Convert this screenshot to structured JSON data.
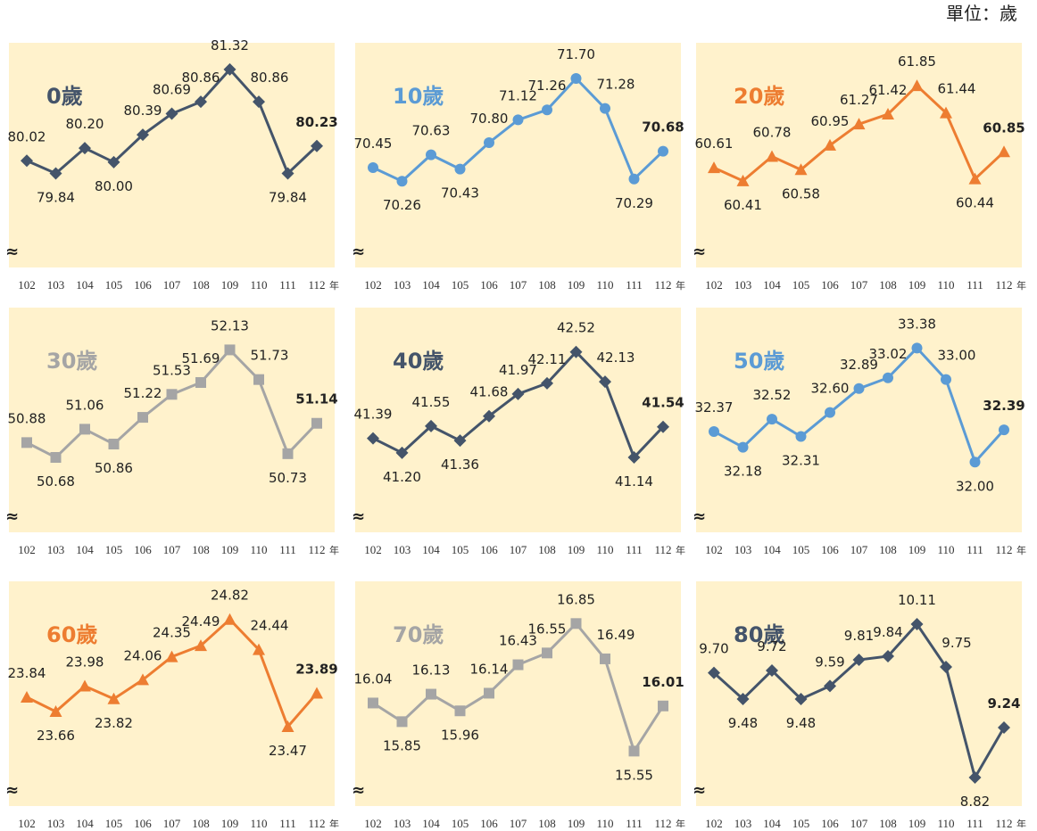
{
  "unit": "單位：歲",
  "chart_data": [
    {
      "type": "line",
      "title": "0歲",
      "color": "#44546a",
      "marker": "diamond",
      "axis_break": "≈",
      "x_unit": "年",
      "categories": [
        "102",
        "103",
        "104",
        "105",
        "106",
        "107",
        "108",
        "109",
        "110",
        "111",
        "112"
      ],
      "values": [
        80.02,
        79.84,
        80.2,
        80.0,
        80.39,
        80.69,
        80.86,
        81.32,
        80.86,
        79.84,
        80.23
      ],
      "value_labels": [
        "80.02",
        "79.84",
        "80.20",
        "80.00",
        "80.39",
        "80.69",
        "80.86",
        "81.32",
        "80.86",
        "79.84",
        "80.23"
      ],
      "ylim": [
        78.5,
        81.7
      ]
    },
    {
      "type": "line",
      "title": "10歲",
      "color": "#5b9bd5",
      "marker": "circle",
      "axis_break": "≈",
      "x_unit": "年",
      "categories": [
        "102",
        "103",
        "104",
        "105",
        "106",
        "107",
        "108",
        "109",
        "110",
        "111",
        "112"
      ],
      "values": [
        70.45,
        70.26,
        70.63,
        70.43,
        70.8,
        71.12,
        71.26,
        71.7,
        71.28,
        70.29,
        70.68
      ],
      "value_labels": [
        "70.45",
        "70.26",
        "70.63",
        "70.43",
        "70.80",
        "71.12",
        "71.26",
        "71.70",
        "71.28",
        "70.29",
        "70.68"
      ],
      "ylim": [
        69.05,
        72.2
      ]
    },
    {
      "type": "line",
      "title": "20歲",
      "color": "#ed7d31",
      "marker": "triangle",
      "axis_break": "≈",
      "x_unit": "年",
      "categories": [
        "102",
        "103",
        "104",
        "105",
        "106",
        "107",
        "108",
        "109",
        "110",
        "111",
        "112"
      ],
      "values": [
        60.61,
        60.41,
        60.78,
        60.58,
        60.95,
        61.27,
        61.42,
        61.85,
        61.44,
        60.44,
        60.85
      ],
      "value_labels": [
        "60.61",
        "60.41",
        "60.78",
        "60.58",
        "60.95",
        "61.27",
        "61.42",
        "61.85",
        "61.44",
        "60.44",
        "60.85"
      ],
      "ylim": [
        59.1,
        62.5
      ]
    },
    {
      "type": "line",
      "title": "30歲",
      "color": "#a5a5a5",
      "marker": "square",
      "axis_break": "≈",
      "x_unit": "年",
      "categories": [
        "102",
        "103",
        "104",
        "105",
        "106",
        "107",
        "108",
        "109",
        "110",
        "111",
        "112"
      ],
      "values": [
        50.88,
        50.68,
        51.06,
        50.86,
        51.22,
        51.53,
        51.69,
        52.13,
        51.73,
        50.73,
        51.14
      ],
      "value_labels": [
        "50.88",
        "50.68",
        "51.06",
        "50.86",
        "51.22",
        "51.53",
        "51.69",
        "52.13",
        "51.73",
        "50.73",
        "51.14"
      ],
      "ylim": [
        49.67,
        52.7
      ]
    },
    {
      "type": "line",
      "title": "40歲",
      "color": "#44546a",
      "marker": "diamond",
      "axis_break": "≈",
      "x_unit": "年",
      "categories": [
        "102",
        "103",
        "104",
        "105",
        "106",
        "107",
        "108",
        "109",
        "110",
        "111",
        "112"
      ],
      "values": [
        41.39,
        41.2,
        41.55,
        41.36,
        41.68,
        41.97,
        42.11,
        42.52,
        42.13,
        41.14,
        41.54
      ],
      "value_labels": [
        "41.39",
        "41.20",
        "41.55",
        "41.36",
        "41.68",
        "41.97",
        "42.11",
        "42.52",
        "42.13",
        "41.14",
        "41.54"
      ],
      "ylim": [
        40.16,
        43.1
      ]
    },
    {
      "type": "line",
      "title": "50歲",
      "color": "#5b9bd5",
      "marker": "circle",
      "axis_break": "≈",
      "x_unit": "年",
      "categories": [
        "102",
        "103",
        "104",
        "105",
        "106",
        "107",
        "108",
        "109",
        "110",
        "111",
        "112"
      ],
      "values": [
        32.37,
        32.18,
        32.52,
        32.31,
        32.6,
        32.89,
        33.02,
        33.38,
        33.0,
        32.0,
        32.39
      ],
      "value_labels": [
        "32.37",
        "32.18",
        "32.52",
        "32.31",
        "32.60",
        "32.89",
        "33.02",
        "33.38",
        "33.00",
        "32.00",
        "32.39"
      ],
      "ylim": [
        31.15,
        33.87
      ]
    },
    {
      "type": "line",
      "title": "60歲",
      "color": "#ed7d31",
      "marker": "triangle",
      "axis_break": "≈",
      "x_unit": "年",
      "categories": [
        "102",
        "103",
        "104",
        "105",
        "106",
        "107",
        "108",
        "109",
        "110",
        "111",
        "112"
      ],
      "values": [
        23.84,
        23.66,
        23.98,
        23.82,
        24.06,
        24.35,
        24.49,
        24.82,
        24.44,
        23.47,
        23.89
      ],
      "value_labels": [
        "23.84",
        "23.66",
        "23.98",
        "23.82",
        "24.06",
        "24.35",
        "24.49",
        "24.82",
        "24.44",
        "23.47",
        "23.89"
      ],
      "ylim": [
        22.47,
        25.3
      ]
    },
    {
      "type": "line",
      "title": "70歲",
      "color": "#a5a5a5",
      "marker": "square",
      "axis_break": "≈",
      "x_unit": "年",
      "categories": [
        "102",
        "103",
        "104",
        "105",
        "106",
        "107",
        "108",
        "109",
        "110",
        "111",
        "112"
      ],
      "values": [
        16.04,
        15.85,
        16.13,
        15.96,
        16.14,
        16.43,
        16.55,
        16.85,
        16.49,
        15.55,
        16.01
      ],
      "value_labels": [
        "16.04",
        "15.85",
        "16.13",
        "15.96",
        "16.14",
        "16.43",
        "16.55",
        "16.85",
        "16.49",
        "15.55",
        "16.01"
      ],
      "ylim": [
        14.99,
        17.28
      ]
    },
    {
      "type": "line",
      "title": "80歲",
      "color": "#44546a",
      "marker": "diamond",
      "axis_break": "≈",
      "x_unit": "年",
      "categories": [
        "102",
        "103",
        "104",
        "105",
        "106",
        "107",
        "108",
        "109",
        "110",
        "111",
        "112"
      ],
      "values": [
        9.7,
        9.48,
        9.72,
        9.48,
        9.59,
        9.81,
        9.84,
        10.11,
        9.75,
        8.82,
        9.24
      ],
      "value_labels": [
        "9.70",
        "9.48",
        "9.72",
        "9.48",
        "9.59",
        "9.81",
        "9.84",
        "10.11",
        "9.75",
        "8.82",
        "9.24"
      ],
      "ylim": [
        8.58,
        10.47
      ]
    }
  ]
}
